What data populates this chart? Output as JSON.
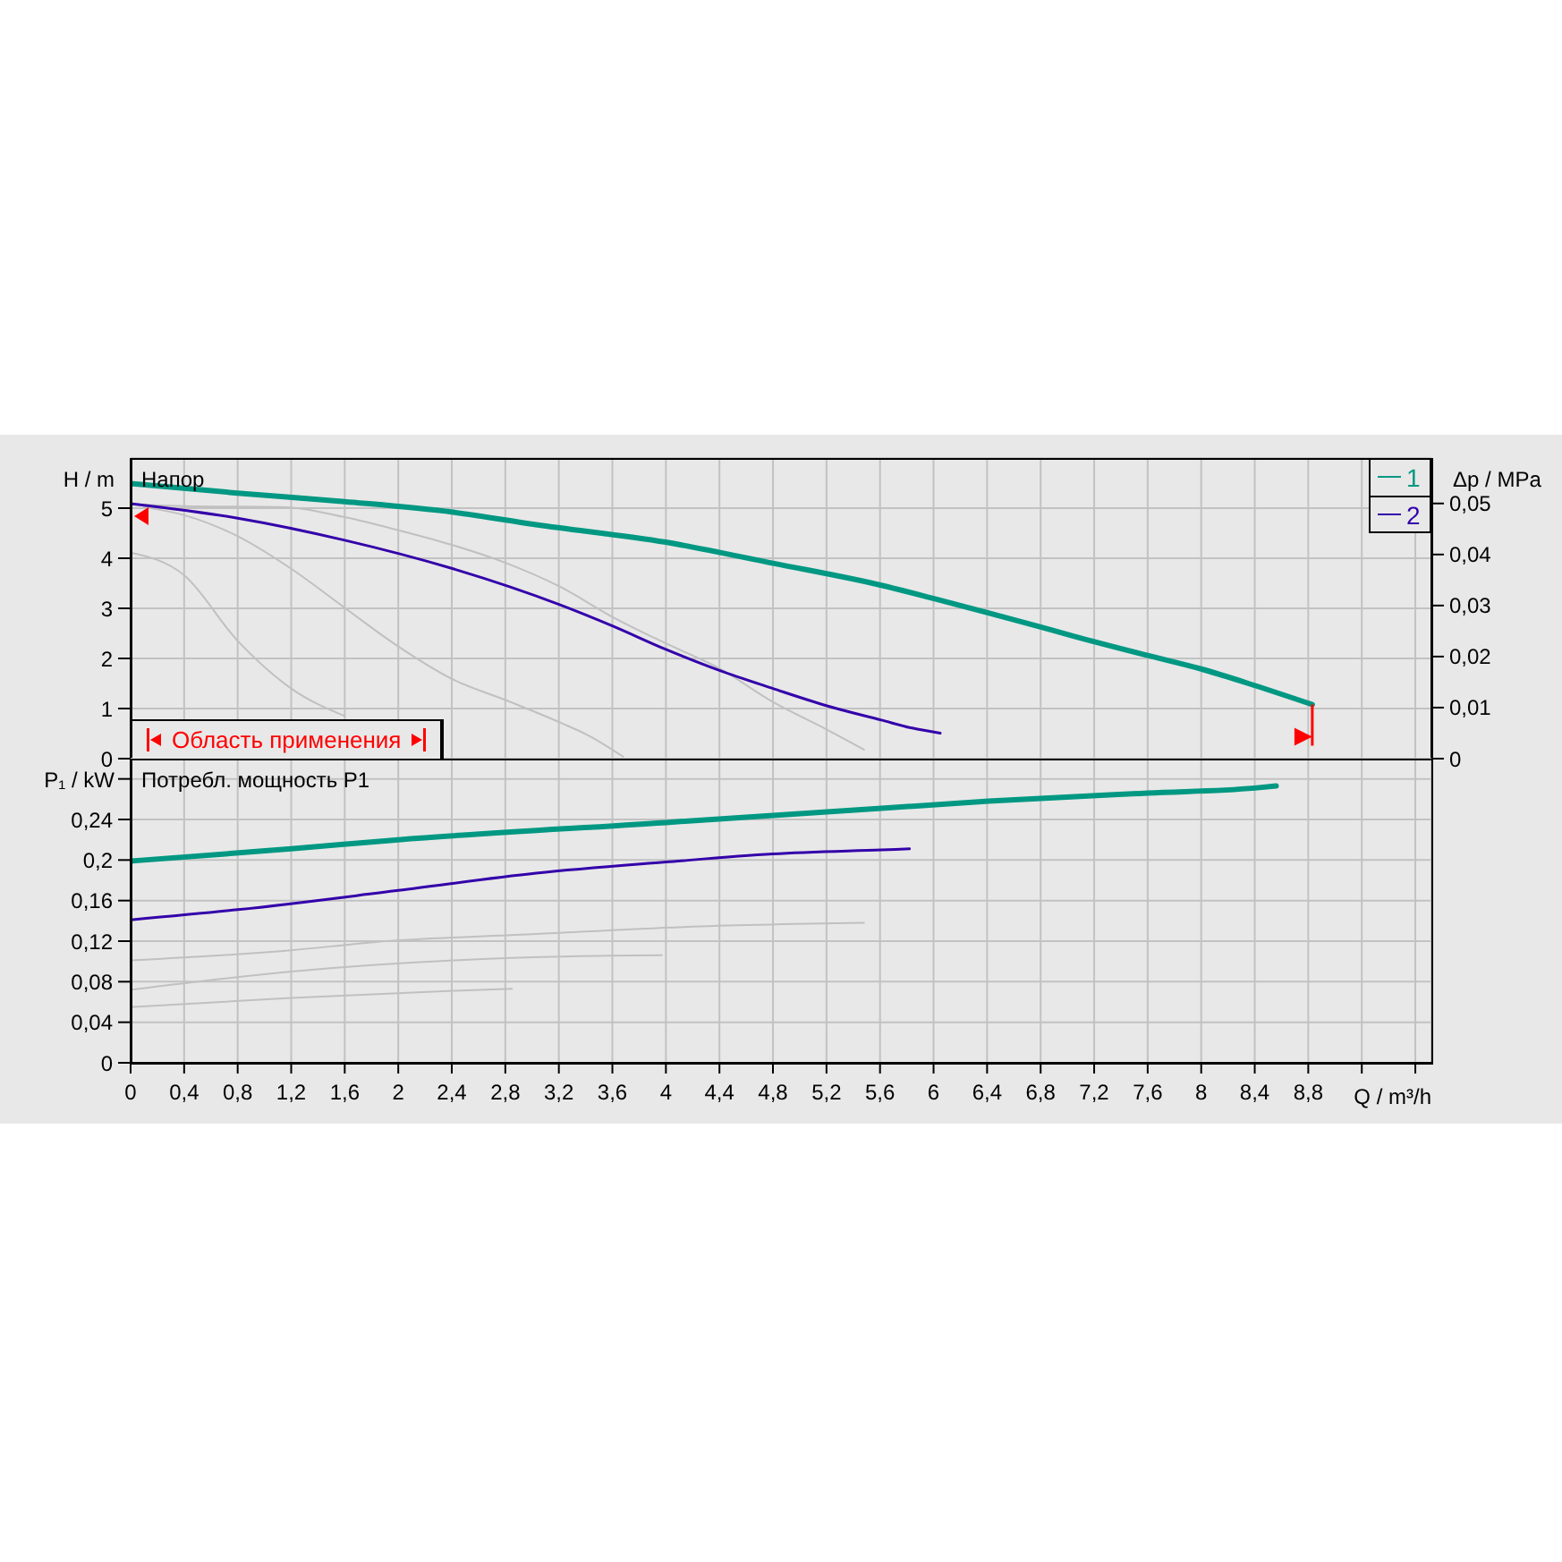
{
  "chart_data": [
    {
      "type": "line",
      "title": "Напор",
      "ylabel": "H / m",
      "y2label": "Δp / MPa",
      "annotations": [
        "Область применения"
      ],
      "xlim": [
        0,
        9.72
      ],
      "xticks": [
        {
          "value": 0,
          "label": null
        },
        {
          "value": 0.4,
          "label": null
        },
        {
          "value": 0.8,
          "label": null
        },
        {
          "value": 1.2,
          "label": null
        },
        {
          "value": 1.6,
          "label": null
        },
        {
          "value": 2,
          "label": null
        },
        {
          "value": 2.4,
          "label": null
        },
        {
          "value": 2.8,
          "label": null
        },
        {
          "value": 3.2,
          "label": null
        },
        {
          "value": 3.6,
          "label": null
        },
        {
          "value": 4,
          "label": null
        },
        {
          "value": 4.4,
          "label": null
        },
        {
          "value": 4.8,
          "label": null
        },
        {
          "value": 5.2,
          "label": null
        },
        {
          "value": 5.6,
          "label": null
        },
        {
          "value": 6,
          "label": null
        },
        {
          "value": 6.4,
          "label": null
        },
        {
          "value": 6.8,
          "label": null
        },
        {
          "value": 7.2,
          "label": null
        },
        {
          "value": 7.6,
          "label": null
        },
        {
          "value": 8,
          "label": null
        },
        {
          "value": 8.4,
          "label": null
        },
        {
          "value": 8.8,
          "label": null
        },
        {
          "value": 9.2,
          "label": null
        },
        {
          "value": 9.6,
          "label": null
        }
      ],
      "ylim": [
        0,
        6
      ],
      "yticks": [
        0,
        1,
        2,
        3,
        4,
        5
      ],
      "y2lim": [
        0,
        0.0589
      ],
      "y2ticks": [
        0,
        {
          "value": 0.01,
          "label": "0,01"
        },
        {
          "value": 0.02,
          "label": "0,02"
        },
        {
          "value": 0.03,
          "label": "0,03"
        },
        {
          "value": 0.04,
          "label": "0,04"
        },
        {
          "value": 0.05,
          "label": "0,05"
        }
      ],
      "grid": true,
      "legend": "top right",
      "tick_labels": "y",
      "series": [
        {
          "name": "1",
          "color": "#009882",
          "x": [
            0,
            0.8,
            1.6,
            2.41,
            3.03,
            4.0,
            4.8,
            5.61,
            6.01,
            6.41,
            6.77,
            7.04,
            7.6,
            8.0,
            8.4,
            8.83
          ],
          "values": [
            5.49,
            5.3,
            5.13,
            4.92,
            4.67,
            4.32,
            3.9,
            3.46,
            3.19,
            2.91,
            2.65,
            2.45,
            2.06,
            1.79,
            1.46,
            1.08
          ]
        },
        {
          "name": "2",
          "color": "#3300aa",
          "x": [
            0,
            0.8,
            1.6,
            2.41,
            3.21,
            3.6,
            4.0,
            4.4,
            4.8,
            5.21,
            5.61,
            5.84,
            6.05
          ],
          "values": [
            5.09,
            4.8,
            4.36,
            3.79,
            3.07,
            2.65,
            2.18,
            1.76,
            1.4,
            1.05,
            0.77,
            0.61,
            0.51
          ]
        },
        {
          "color": "#c0c0c0",
          "x": [
            0,
            0.4,
            1.16,
            1.6,
            2.0,
            2.41,
            2.81,
            3.21,
            3.6,
            4.0,
            4.4,
            4.8,
            5.21,
            5.48
          ],
          "values": [
            5.08,
            5.04,
            5.02,
            4.82,
            4.56,
            4.26,
            3.9,
            3.43,
            2.83,
            2.3,
            1.8,
            1.13,
            0.57,
            0.18
          ]
        },
        {
          "color": "#c0c0c0",
          "x": [
            0.1,
            0.4,
            0.8,
            1.2,
            1.6,
            2.0,
            2.41,
            2.81,
            3.21,
            3.43,
            3.68
          ],
          "values": [
            5.02,
            4.86,
            4.44,
            3.79,
            3.01,
            2.24,
            1.58,
            1.16,
            0.72,
            0.45,
            0.04
          ]
        },
        {
          "color": "#c0c0c0",
          "x": [
            0,
            0.4,
            0.8,
            1.2,
            1.6
          ],
          "values": [
            4.11,
            3.66,
            2.35,
            1.4,
            0.85
          ]
        }
      ]
    },
    {
      "type": "line",
      "title": "Потребл. мощность P1",
      "xlabel": "Q / m³/h",
      "ylabel": "P₁ / kW",
      "xlim": [
        0,
        9.72
      ],
      "xticks": [
        0,
        {
          "value": 0.4,
          "label": "0,4"
        },
        {
          "value": 0.8,
          "label": "0,8"
        },
        {
          "value": 1.2,
          "label": "1,2"
        },
        {
          "value": 1.6,
          "label": "1,6"
        },
        2,
        {
          "value": 2.4,
          "label": "2,4"
        },
        {
          "value": 2.8,
          "label": "2,8"
        },
        {
          "value": 3.2,
          "label": "3,2"
        },
        {
          "value": 3.6,
          "label": "3,6"
        },
        4,
        {
          "value": 4.4,
          "label": "4,4"
        },
        {
          "value": 4.8,
          "label": "4,8"
        },
        {
          "value": 5.2,
          "label": "5,2"
        },
        {
          "value": 5.6,
          "label": "5,6"
        },
        6,
        {
          "value": 6.4,
          "label": "6,4"
        },
        {
          "value": 6.8,
          "label": "6,8"
        },
        {
          "value": 7.2,
          "label": "7,2"
        },
        {
          "value": 7.6,
          "label": "7,6"
        },
        8,
        {
          "value": 8.4,
          "label": "8,4"
        },
        {
          "value": 8.8,
          "label": "8,8"
        },
        {
          "value": 9.2,
          "label": null
        },
        {
          "value": 9.6,
          "label": null
        }
      ],
      "ylim": [
        0,
        0.3
      ],
      "yticks": [
        0,
        {
          "value": 0.04,
          "label": "0,04"
        },
        {
          "value": 0.08,
          "label": "0,08"
        },
        {
          "value": 0.12,
          "label": "0,12"
        },
        {
          "value": 0.16,
          "label": "0,16"
        },
        {
          "value": 0.2,
          "label": "0,2"
        },
        {
          "value": 0.24,
          "label": "0,24"
        },
        {
          "value": 0.28,
          "label": null
        }
      ],
      "grid": true,
      "series": [
        {
          "color": "#009882",
          "x": [
            0,
            1.2,
            2.0,
            4.0,
            4.8,
            5.61,
            6.41,
            7.6,
            8.4,
            8.56
          ],
          "values": [
            0.199,
            0.211,
            0.22,
            0.237,
            0.244,
            0.251,
            0.258,
            0.266,
            0.271,
            0.273
          ]
        },
        {
          "color": "#3300aa",
          "x": [
            0,
            0.8,
            2.0,
            3.03,
            4.0,
            4.8,
            5.61,
            5.82
          ],
          "values": [
            0.141,
            0.151,
            0.17,
            0.187,
            0.198,
            0.206,
            0.21,
            0.211
          ]
        },
        {
          "color": "#c0c0c0",
          "x": [
            0,
            1.2,
            1.82,
            3.03,
            4.14,
            5.48
          ],
          "values": [
            0.101,
            0.111,
            0.119,
            0.127,
            0.134,
            0.138
          ]
        },
        {
          "color": "#c0c0c0",
          "x": [
            0,
            1.2,
            2.41,
            3.3,
            3.97
          ],
          "values": [
            0.072,
            0.09,
            0.101,
            0.105,
            0.106
          ]
        },
        {
          "color": "#c0c0c0",
          "x": [
            0,
            1.2,
            2.41,
            2.85
          ],
          "values": [
            0.055,
            0.064,
            0.071,
            0.073
          ]
        }
      ]
    }
  ]
}
